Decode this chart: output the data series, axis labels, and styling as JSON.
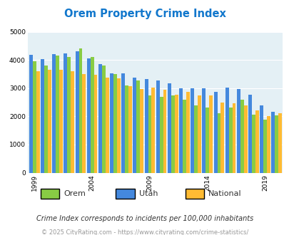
{
  "title": "Orem Property Crime Index",
  "years": [
    1999,
    2000,
    2001,
    2002,
    2003,
    2004,
    2005,
    2006,
    2007,
    2008,
    2009,
    2010,
    2011,
    2012,
    2013,
    2014,
    2015,
    2016,
    2017,
    2018,
    2019,
    2020
  ],
  "orem": [
    3950,
    3800,
    4150,
    4100,
    4420,
    4100,
    3800,
    3500,
    3100,
    3260,
    2750,
    2700,
    2750,
    2600,
    2380,
    2300,
    2120,
    2300,
    2600,
    2060,
    1870,
    2030
  ],
  "utah": [
    4180,
    4020,
    4200,
    4230,
    4300,
    4050,
    3850,
    3520,
    3520,
    3370,
    3330,
    3280,
    3180,
    3000,
    3000,
    2990,
    2880,
    3010,
    2980,
    2770,
    2380,
    2150
  ],
  "national": [
    3600,
    3660,
    3650,
    3600,
    3510,
    3470,
    3380,
    3340,
    3060,
    2970,
    3020,
    2950,
    2760,
    2870,
    2740,
    2730,
    2500,
    2460,
    2380,
    2200,
    2000,
    2110
  ],
  "orem_color": "#88cc44",
  "utah_color": "#4488dd",
  "national_color": "#ffbb33",
  "plot_bg": "#e4f0f5",
  "title_color": "#1177cc",
  "subtitle": "Crime Index corresponds to incidents per 100,000 inhabitants",
  "footer": "© 2025 CityRating.com - https://www.cityrating.com/crime-statistics/",
  "ylim": [
    0,
    5000
  ],
  "yticks": [
    0,
    1000,
    2000,
    3000,
    4000,
    5000
  ],
  "xtick_labels": [
    "1999",
    "2004",
    "2009",
    "2014",
    "2019"
  ],
  "xtick_positions": [
    0,
    5,
    10,
    15,
    20
  ]
}
